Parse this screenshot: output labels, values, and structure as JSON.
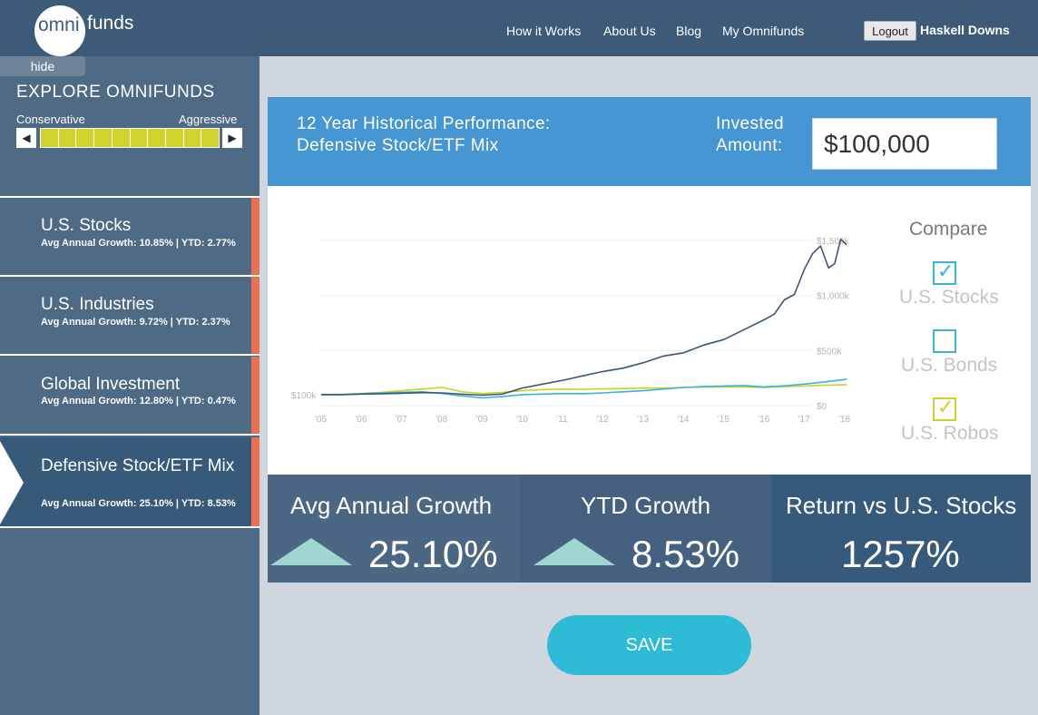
{
  "header": {
    "logo": {
      "part1": "omni",
      "part2": "funds"
    },
    "nav": [
      {
        "label": "How it Works"
      },
      {
        "label": "About Us"
      },
      {
        "label": "Blog"
      },
      {
        "label": "My Omnifunds"
      }
    ],
    "logout_label": "Logout",
    "user_name": "Haskell Downs"
  },
  "sidebar": {
    "hide_label": "hide",
    "title": "EXPLORE OMNIFUNDS",
    "risk_scale": {
      "left_label": "Conservative",
      "right_label": "Aggressive",
      "left_arrow": "◀",
      "right_arrow": "▶",
      "segments": 10,
      "level": 10,
      "fill_color": "#d1d32c"
    },
    "funds": [
      {
        "name": "U.S. Stocks",
        "stats": "Avg Annual Growth: 10.85% | YTD: 2.77%",
        "active": false
      },
      {
        "name": "U.S. Industries",
        "stats": "Avg Annual Growth: 9.72% | YTD: 2.37%",
        "active": false
      },
      {
        "name": "Global Investment",
        "stats": "Avg Annual Growth: 12.80% | YTD: 0.47%",
        "active": false
      },
      {
        "name": "Defensive Stock/ETF Mix",
        "stats": "Avg Annual Growth: 25.10% | YTD: 8.53%",
        "active": true
      }
    ]
  },
  "performance": {
    "title_line1": "12 Year Historical Performance:",
    "title_line2": "Defensive Stock/ETF Mix",
    "invested_label_line1": "Invested",
    "invested_label_line2": "Amount:",
    "invested_value": "$100,000"
  },
  "compare": {
    "title": "Compare",
    "items": [
      {
        "label": "U.S. Stocks",
        "checked": true,
        "color": "#38b4dc"
      },
      {
        "label": "U.S. Bonds",
        "checked": false,
        "color": "#38b4dc"
      },
      {
        "label": "U.S. Robos",
        "checked": true,
        "color": "#c9d32b"
      }
    ],
    "check_glyph": "✓"
  },
  "stats": {
    "avg_growth": {
      "title": "Avg Annual Growth",
      "value": "25.10%",
      "trend": "up"
    },
    "ytd_growth": {
      "title": "YTD Growth",
      "value": "8.53%",
      "trend": "up"
    },
    "return_vs": {
      "title": "Return vs U.S. Stocks",
      "value": "1257%"
    }
  },
  "save_label": "SAVE",
  "colors": {
    "header_bg": "#3d5a78",
    "sidebar_bg": "#4e6a85",
    "active_fund_bg": "#375a7a",
    "accent_red": "#ec6f52",
    "panel_blue": "#4596d3",
    "save_button": "#2ebbd6",
    "trend_up": "#9fd6cf"
  },
  "chart_data": {
    "type": "line",
    "title": "",
    "xlabel": "",
    "ylabel": "",
    "x_ticks": [
      "'05",
      "'06",
      "'07",
      "'08",
      "'09",
      "'10",
      "'11",
      "'12",
      "'13",
      "'14",
      "'15",
      "'16",
      "'17",
      "'18"
    ],
    "y_ticks": [
      "$0",
      "$500k",
      "$1,000k",
      "$1,500k"
    ],
    "start_label": "$100k",
    "xlim": [
      2005,
      2018
    ],
    "ylim": [
      0,
      1500000
    ],
    "grid": true,
    "series": [
      {
        "color": "#3b5774",
        "x": [
          2005,
          2005.5,
          2006,
          2006.5,
          2007,
          2007.5,
          2008,
          2008.5,
          2009,
          2009.5,
          2010,
          2010.5,
          2011,
          2011.5,
          2012,
          2012.5,
          2013,
          2013.5,
          2014,
          2014.5,
          2015,
          2015.5,
          2016,
          2016.25,
          2016.5,
          2016.75,
          2017,
          2017.2,
          2017.4,
          2017.6,
          2017.75,
          2017.9,
          2018.05
        ],
        "y": [
          100000,
          100000,
          105000,
          108000,
          112000,
          118000,
          115000,
          104000,
          95000,
          105000,
          160000,
          195000,
          230000,
          270000,
          310000,
          340000,
          390000,
          450000,
          480000,
          550000,
          600000,
          690000,
          780000,
          830000,
          960000,
          1010000,
          1240000,
          1380000,
          1450000,
          1250000,
          1290000,
          1510000,
          1460000
        ]
      },
      {
        "color": "#38b4dc",
        "x": [
          2005,
          2005.5,
          2006,
          2006.5,
          2007,
          2007.5,
          2008,
          2008.5,
          2009,
          2009.5,
          2010,
          2010.5,
          2011,
          2011.5,
          2012,
          2012.5,
          2013,
          2013.5,
          2014,
          2014.5,
          2015,
          2015.5,
          2016,
          2016.5,
          2017,
          2017.5,
          2018.05
        ],
        "y": [
          100000,
          100000,
          108000,
          115000,
          120000,
          125000,
          110000,
          88000,
          70000,
          82000,
          100000,
          105000,
          110000,
          108000,
          115000,
          125000,
          135000,
          150000,
          165000,
          172000,
          178000,
          182000,
          170000,
          180000,
          195000,
          215000,
          240000
        ]
      },
      {
        "color": "#c9d32b",
        "x": [
          2005,
          2005.5,
          2006,
          2006.5,
          2007,
          2007.5,
          2008,
          2008.5,
          2009,
          2009.5,
          2010,
          2010.5,
          2011,
          2011.5,
          2012,
          2012.5,
          2013,
          2013.5,
          2014,
          2014.5,
          2015,
          2015.5,
          2016,
          2016.5,
          2017,
          2017.5,
          2018.05
        ],
        "y": [
          100000,
          102000,
          110000,
          120000,
          135000,
          150000,
          165000,
          125000,
          110000,
          120000,
          135000,
          145000,
          150000,
          148000,
          152000,
          155000,
          158000,
          160000,
          165000,
          168000,
          170000,
          168000,
          165000,
          172000,
          178000,
          185000,
          190000
        ]
      }
    ]
  }
}
